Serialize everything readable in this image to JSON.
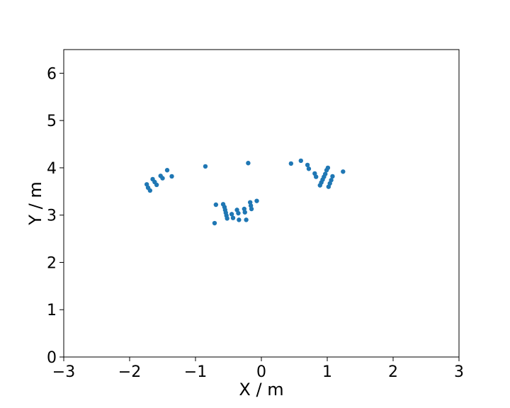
{
  "chart_data": {
    "type": "scatter",
    "xlabel": "X / m",
    "ylabel": "Y / m",
    "xlim": [
      -3,
      3
    ],
    "ylim": [
      0,
      6.5
    ],
    "xticks": [
      -3,
      -2,
      -1,
      0,
      1,
      2,
      3
    ],
    "yticks": [
      0,
      1,
      2,
      3,
      4,
      5,
      6
    ],
    "xtick_labels": [
      "−3",
      "−2",
      "−1",
      "0",
      "1",
      "2",
      "3"
    ],
    "ytick_labels": [
      "0",
      "1",
      "2",
      "3",
      "4",
      "5",
      "6"
    ],
    "grid": false,
    "legend": "none",
    "marker_color": "#1f77b4",
    "series": [
      {
        "x": [
          -1.74,
          -1.72,
          -1.69,
          -1.65,
          -1.62,
          -1.59,
          -1.53,
          -1.5,
          -1.43,
          -1.36,
          -0.85,
          -0.2,
          -0.71,
          -0.69,
          -0.58,
          -0.56,
          -0.55,
          -0.54,
          -0.53,
          -0.52,
          -0.45,
          -0.43,
          -0.37,
          -0.35,
          -0.34,
          -0.26,
          -0.25,
          -0.23,
          -0.17,
          -0.16,
          -0.15,
          -0.07,
          0.45,
          0.6,
          0.7,
          0.72,
          0.81,
          0.83,
          0.89,
          0.91,
          0.93,
          0.95,
          0.97,
          0.99,
          1.01,
          1.02,
          1.04,
          1.06,
          1.08,
          1.24
        ],
        "y": [
          3.65,
          3.58,
          3.52,
          3.76,
          3.7,
          3.64,
          3.83,
          3.78,
          3.95,
          3.82,
          4.03,
          4.1,
          2.83,
          3.22,
          3.23,
          3.17,
          3.11,
          3.05,
          2.99,
          2.93,
          3.02,
          2.94,
          3.11,
          3.04,
          2.9,
          3.13,
          3.06,
          2.9,
          3.27,
          3.2,
          3.13,
          3.3,
          4.09,
          4.15,
          4.06,
          3.98,
          3.88,
          3.81,
          3.63,
          3.69,
          3.75,
          3.81,
          3.87,
          3.95,
          4.0,
          3.6,
          3.67,
          3.74,
          3.82,
          3.92
        ]
      }
    ]
  }
}
